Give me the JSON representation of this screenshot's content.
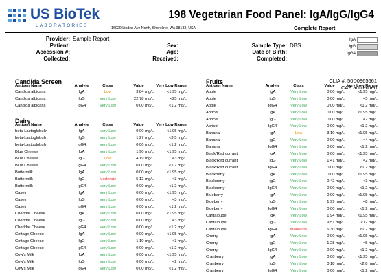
{
  "logo": {
    "name": "US BioTek",
    "subtitle": "LABORATORIES"
  },
  "address": "16020 Linden Ave North, Shoreline, WA 98133, USA",
  "title": "198 Vegetarian Food Panel: IgA/IgG/IgG4",
  "report_type": "Complete Report",
  "patient_info": {
    "provider_label": "Provider:",
    "provider_value": "Sample Report",
    "patient_label": "Patient:",
    "accession_label": "Accession #:",
    "collected_label": "Collected:",
    "sex_label": "Sex:",
    "age_label": "Age:",
    "received_label": "Received:",
    "sample_type_label": "Sample Type:",
    "sample_type_value": "DBS",
    "dob_label": "Date of Birth:",
    "completed_label": "Completed:"
  },
  "legend": [
    {
      "label": "IgA",
      "color": "#ffffff"
    },
    {
      "label": "IgG",
      "color": "#d4d4d4"
    },
    {
      "label": "IgG4",
      "color": "#a0a0a0"
    }
  ],
  "clia": {
    "number": "CLIA #: 50D0965661",
    "accreditation": "CAP accredited"
  },
  "columns": {
    "antigen": "Antigen Name",
    "analyte": "Analyte",
    "class": "Class",
    "value": "Value",
    "range": "Very Low Range"
  },
  "class_colors": {
    "Very Low": "#34a853",
    "Low": "#e69100",
    "Moderate": "#e53935"
  },
  "sections": {
    "candida": {
      "title": "Candida Screen",
      "rows": [
        [
          "Candida albicans",
          "IgA",
          "Low",
          "3.84 mg/L",
          "<1.95 mg/L"
        ],
        [
          "Candida albicans",
          "IgG",
          "Very Low",
          "22.78 mg/L",
          "<25 mg/L"
        ],
        [
          "Candida albicans",
          "IgG4",
          "Very Low",
          "0.00 mg/L",
          "<1.2 mg/L"
        ]
      ]
    },
    "dairy": {
      "title": "Dairy",
      "rows": [
        [
          "beta-Lactoglobulin",
          "IgA",
          "Very Low",
          "0.00 mg/L",
          "<1.95 mg/L"
        ],
        [
          "beta-Lactoglobulin",
          "IgG",
          "Very Low",
          "1.27 mg/L",
          "<3.5 mg/L"
        ],
        [
          "beta-Lactoglobulin",
          "IgG4",
          "Very Low",
          "0.00 mg/L",
          "<1.2 mg/L"
        ],
        [
          "Blue Cheese",
          "IgA",
          "Very Low",
          "1.90 mg/L",
          "<1.95 mg/L"
        ],
        [
          "Blue Cheese",
          "IgG",
          "Low",
          "4.19 mg/L",
          "<3 mg/L"
        ],
        [
          "Blue Cheese",
          "IgG4",
          "Very Low",
          "0.00 mg/L",
          "<1.2 mg/L"
        ],
        [
          "Buttermilk",
          "IgA",
          "Very Low",
          "0.00 mg/L",
          "<1.95 mg/L"
        ],
        [
          "Buttermilk",
          "IgG",
          "Moderate",
          "5.12 mg/L",
          "<3 mg/L"
        ],
        [
          "Buttermilk",
          "IgG4",
          "Very Low",
          "0.00 mg/L",
          "<1.2 mg/L"
        ],
        [
          "Casein",
          "IgA",
          "Very Low",
          "0.00 mg/L",
          "<1.95 mg/L"
        ],
        [
          "Casein",
          "IgG",
          "Very Low",
          "0.00 mg/L",
          "<3 mg/L"
        ],
        [
          "Casein",
          "IgG4",
          "Very Low",
          "0.00 mg/L",
          "<1.2 mg/L"
        ],
        [
          "Cheddar Cheese",
          "IgA",
          "Very Low",
          "0.00 mg/L",
          "<1.95 mg/L"
        ],
        [
          "Cheddar Cheese",
          "IgG",
          "Very Low",
          "0.00 mg/L",
          "<3 mg/L"
        ],
        [
          "Cheddar Cheese",
          "IgG4",
          "Very Low",
          "0.00 mg/L",
          "<1.2 mg/L"
        ],
        [
          "Cottage Cheese",
          "IgA",
          "Very Low",
          "0.00 mg/L",
          "<1.95 mg/L"
        ],
        [
          "Cottage Cheese",
          "IgG",
          "Very Low",
          "1.10 mg/L",
          "<3 mg/L"
        ],
        [
          "Cottage Cheese",
          "IgG4",
          "Very Low",
          "0.00 mg/L",
          "<1.2 mg/L"
        ],
        [
          "Cow's Milk",
          "IgA",
          "Very Low",
          "0.00 mg/L",
          "<1.95 mg/L"
        ],
        [
          "Cow's Milk",
          "IgG",
          "Very Low",
          "0.00 mg/L",
          "<2 mg/L"
        ],
        [
          "Cow's Milk",
          "IgG4",
          "Very Low",
          "0.00 mg/L",
          "<1.2 mg/L"
        ]
      ]
    },
    "fruits": {
      "title": "Fruits",
      "rows": [
        [
          "Apple",
          "IgA",
          "Very Low",
          "0.00 mg/L",
          "<1.95 mg/L"
        ],
        [
          "Apple",
          "IgG",
          "Very Low",
          "0.00 mg/L",
          "<5 mg/L"
        ],
        [
          "Apple",
          "IgG4",
          "Very Low",
          "0.00 mg/L",
          "<1.2 mg/L"
        ],
        [
          "Apricot",
          "IgA",
          "Very Low",
          "0.00 mg/L",
          "<1.95 mg/L"
        ],
        [
          "Apricot",
          "IgG",
          "Very Low",
          "0.00 mg/L",
          "<2 mg/L"
        ],
        [
          "Apricot",
          "IgG4",
          "Very Low",
          "0.00 mg/L",
          "<1.2 mg/L"
        ],
        [
          "Banana",
          "IgA",
          "Low",
          "3.10 mg/L",
          "<1.95 mg/L"
        ],
        [
          "Banana",
          "IgG",
          "Very Low",
          "0.00 mg/L",
          "<4 mg/L"
        ],
        [
          "Banana",
          "IgG4",
          "Very Low",
          "0.00 mg/L",
          "<1.2 mg/L"
        ],
        [
          "Black/Red currant",
          "IgA",
          "Very Low",
          "0.00 mg/L",
          "<1.95 mg/L"
        ],
        [
          "Black/Red currant",
          "IgG",
          "Very Low",
          "1.41 mg/L",
          "<2 mg/L"
        ],
        [
          "Black/Red currant",
          "IgG4",
          "Very Low",
          "0.00 mg/L",
          "<1.2 mg/L"
        ],
        [
          "Blackberry",
          "IgA",
          "Very Low",
          "0.00 mg/L",
          "<1.95 mg/L"
        ],
        [
          "Blackberry",
          "IgG",
          "Very Low",
          "0.42 mg/L",
          "<3 mg/L"
        ],
        [
          "Blackberry",
          "IgG4",
          "Very Low",
          "0.00 mg/L",
          "<1.2 mg/L"
        ],
        [
          "Blueberry",
          "IgA",
          "Very Low",
          "0.00 mg/L",
          "<1.95 mg/L"
        ],
        [
          "Blueberry",
          "IgG",
          "Very Low",
          "1.99 mg/L",
          "<8 mg/L"
        ],
        [
          "Blueberry",
          "IgG4",
          "Very Low",
          "0.00 mg/L",
          "<1.2 mg/L"
        ],
        [
          "Cantaloupe",
          "IgA",
          "Very Low",
          "1.94 mg/L",
          "<1.95 mg/L"
        ],
        [
          "Cantaloupe",
          "IgG",
          "Very Low",
          "9.51 mg/L",
          "<12 mg/L"
        ],
        [
          "Cantaloupe",
          "IgG4",
          "Moderate",
          "6.30 mg/L",
          "<1.2 mg/L"
        ],
        [
          "Cherry",
          "IgA",
          "Very Low",
          "0.00 mg/L",
          "<1.95 mg/L"
        ],
        [
          "Cherry",
          "IgG",
          "Very Low",
          "1.28 mg/L",
          "<5 mg/L"
        ],
        [
          "Cherry",
          "IgG4",
          "Very Low",
          "0.00 mg/L",
          "<1.2 mg/L"
        ],
        [
          "Cranberry",
          "IgA",
          "Very Low",
          "0.00 mg/L",
          "<1.95 mg/L"
        ],
        [
          "Cranberry",
          "IgG",
          "Very Low",
          "0.18 mg/L",
          "<2.8 mg/L"
        ],
        [
          "Cranberry",
          "IgG4",
          "Very Low",
          "0.00 mg/L",
          "<1.2 mg/L"
        ]
      ]
    }
  }
}
